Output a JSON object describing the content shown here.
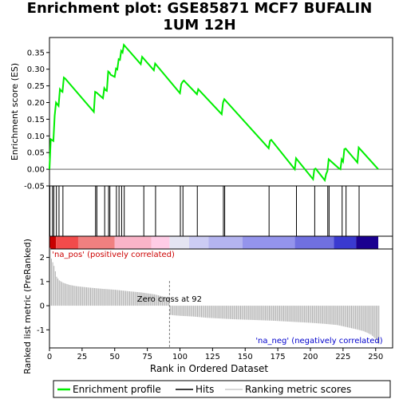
{
  "chart_data": {
    "type": "line",
    "title_line1": "Enrichment plot: GSE85871 MCF7 BUFALIN",
    "title_line2": "1UM 12H",
    "top_panel": {
      "ylabel": "Enrichment score (ES)",
      "ylim": [
        -0.05,
        0.395
      ],
      "yticks": [
        -0.05,
        0.0,
        0.05,
        0.1,
        0.15,
        0.2,
        0.25,
        0.3,
        0.35
      ],
      "ytick_labels": [
        "-0.05",
        "0.00",
        "0.05",
        "0.10",
        "0.15",
        "0.20",
        "0.25",
        "0.30",
        "0.35"
      ],
      "es_curve": {
        "x": [
          0,
          1,
          3,
          4,
          5,
          6,
          7,
          8,
          9,
          10,
          11,
          12,
          34,
          35,
          36,
          41,
          42,
          43,
          44,
          45,
          46,
          47,
          50,
          51,
          52,
          53,
          54,
          55,
          56,
          57,
          70,
          71,
          80,
          81,
          100,
          101,
          102,
          103,
          113,
          114,
          132,
          133,
          134,
          168,
          169,
          170,
          188,
          189,
          190,
          202,
          203,
          204,
          211,
          212,
          213,
          214,
          222,
          223,
          224,
          225,
          226,
          227,
          236,
          237,
          252
        ],
        "y": [
          0.0,
          0.09,
          0.085,
          0.16,
          0.2,
          0.195,
          0.19,
          0.24,
          0.235,
          0.232,
          0.275,
          0.272,
          0.172,
          0.232,
          0.23,
          0.213,
          0.243,
          0.237,
          0.235,
          0.293,
          0.29,
          0.283,
          0.277,
          0.302,
          0.299,
          0.33,
          0.328,
          0.355,
          0.35,
          0.373,
          0.315,
          0.337,
          0.297,
          0.317,
          0.228,
          0.255,
          0.262,
          0.266,
          0.225,
          0.24,
          0.165,
          0.2,
          0.21,
          0.063,
          0.085,
          0.088,
          0.0,
          0.033,
          0.028,
          -0.03,
          0.0,
          0.002,
          -0.033,
          -0.015,
          -0.005,
          0.03,
          0.002,
          0.0,
          0.03,
          0.023,
          0.06,
          0.062,
          0.02,
          0.065,
          0.0
        ]
      }
    },
    "hits": [
      0,
      2,
      3,
      5,
      7,
      10,
      35,
      36,
      42,
      45,
      46,
      51,
      53,
      55,
      57,
      72,
      81,
      100,
      102,
      113,
      133,
      134,
      168,
      189,
      203,
      213,
      214,
      224,
      227,
      237
    ],
    "bottom_panel": {
      "ylabel": "Ranked list metric (PreRanked)",
      "xlabel": "Rank in Ordered Dataset",
      "ylim": [
        -1.75,
        2.35
      ],
      "yticks": [
        -1,
        0,
        1,
        2
      ],
      "ytick_labels": [
        "-1",
        "0",
        "1",
        "2"
      ],
      "xlim": [
        0,
        263
      ],
      "xticks": [
        0,
        25,
        50,
        75,
        100,
        125,
        150,
        175,
        200,
        225,
        250
      ],
      "xtick_labels": [
        "0",
        "25",
        "50",
        "75",
        "100",
        "125",
        "150",
        "175",
        "200",
        "225",
        "250"
      ],
      "metric_knots": {
        "rank": [
          0,
          1,
          2,
          3,
          5,
          7,
          10,
          15,
          20,
          30,
          40,
          50,
          60,
          70,
          80,
          85,
          91,
          92,
          95,
          100,
          110,
          120,
          130,
          140,
          150,
          160,
          170,
          180,
          190,
          200,
          210,
          220,
          225,
          230,
          235,
          240,
          243,
          246,
          248,
          250,
          251,
          252
        ],
        "value": [
          2.4,
          1.95,
          1.8,
          1.65,
          1.2,
          1.05,
          0.95,
          0.86,
          0.81,
          0.75,
          0.7,
          0.66,
          0.6,
          0.55,
          0.47,
          0.4,
          0.32,
          -0.38,
          -0.4,
          -0.42,
          -0.45,
          -0.5,
          -0.53,
          -0.56,
          -0.58,
          -0.6,
          -0.62,
          -0.65,
          -0.68,
          -0.71,
          -0.75,
          -0.8,
          -0.86,
          -0.92,
          -0.98,
          -1.05,
          -1.12,
          -1.2,
          -1.3,
          -1.42,
          -1.52,
          -1.6
        ]
      },
      "zero_cross_rank": 92,
      "zero_cross_label": "Zero cross at 92",
      "pos_label": "'na_pos' (positively correlated)",
      "neg_label": "'na_neg' (negatively correlated)",
      "pos_label_color": "#cc0000",
      "neg_label_color": "#0000cc"
    },
    "heat_bar_colors": [
      "#c80000",
      "#f24b4b",
      "#f08080",
      "#fab4c8",
      "#ffcce6",
      "#e4e4f2",
      "#ccccf4",
      "#b4b4f0",
      "#9494ec",
      "#7070e0",
      "#3a3ad0",
      "#1a0090"
    ],
    "heat_bar_breaks": [
      0,
      5,
      22,
      50,
      78,
      92,
      107,
      122,
      148,
      188,
      218,
      235,
      252
    ],
    "colors": {
      "es_line": "#00ee00",
      "hit_line": "#000000",
      "metric_bars": "#b0b0b0",
      "zero_cross_line": "#808080"
    },
    "legend": {
      "position": "bottom",
      "items": [
        {
          "label": "Enrichment profile",
          "icon": "green-line-icon"
        },
        {
          "label": "Hits",
          "icon": "black-line-icon"
        },
        {
          "label": "Ranking metric scores",
          "icon": "gray-line-icon"
        }
      ]
    }
  }
}
